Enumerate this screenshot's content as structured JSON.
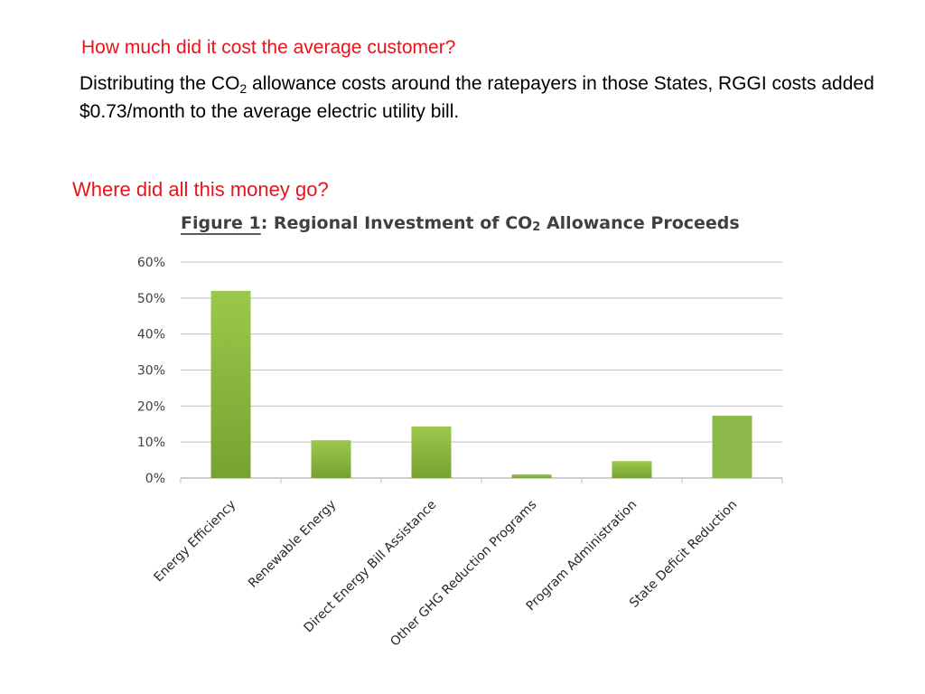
{
  "text": {
    "question_cost": "How much did it cost the average customer?",
    "para_part1": "Distributing the CO",
    "para_sub": "2",
    "para_part2": " allowance costs around the ratepayers in those States, RGGI costs added $0.73/month to the average electric utility bill.",
    "question_money": "Where did all this money go?"
  },
  "colors": {
    "highlight_text": "#e8141c",
    "bar_top": "#9bc84a",
    "bar_bottom": "#77a232",
    "bar_flat": "#8cb94a",
    "gridline": "#bfbfbf"
  },
  "chart_data": {
    "type": "bar",
    "title_fig": "Figure 1",
    "title_rest": ": Regional Investment of CO",
    "title_sub": "2",
    "title_end": " Allowance Proceeds",
    "xlabel": "",
    "ylabel": "",
    "ylim": [
      0,
      60
    ],
    "yticks": [
      "0%",
      "10%",
      "20%",
      "30%",
      "40%",
      "50%",
      "60%"
    ],
    "grid": true,
    "categories": [
      "Energy Efficiency",
      "Renewable Energy",
      "Direct Energy Bill Assistance",
      "Other GHG Reduction Programs",
      "Program Administration",
      "State Deficit Reduction"
    ],
    "values": [
      52,
      10.5,
      14.3,
      1,
      4.7,
      17.3
    ]
  }
}
